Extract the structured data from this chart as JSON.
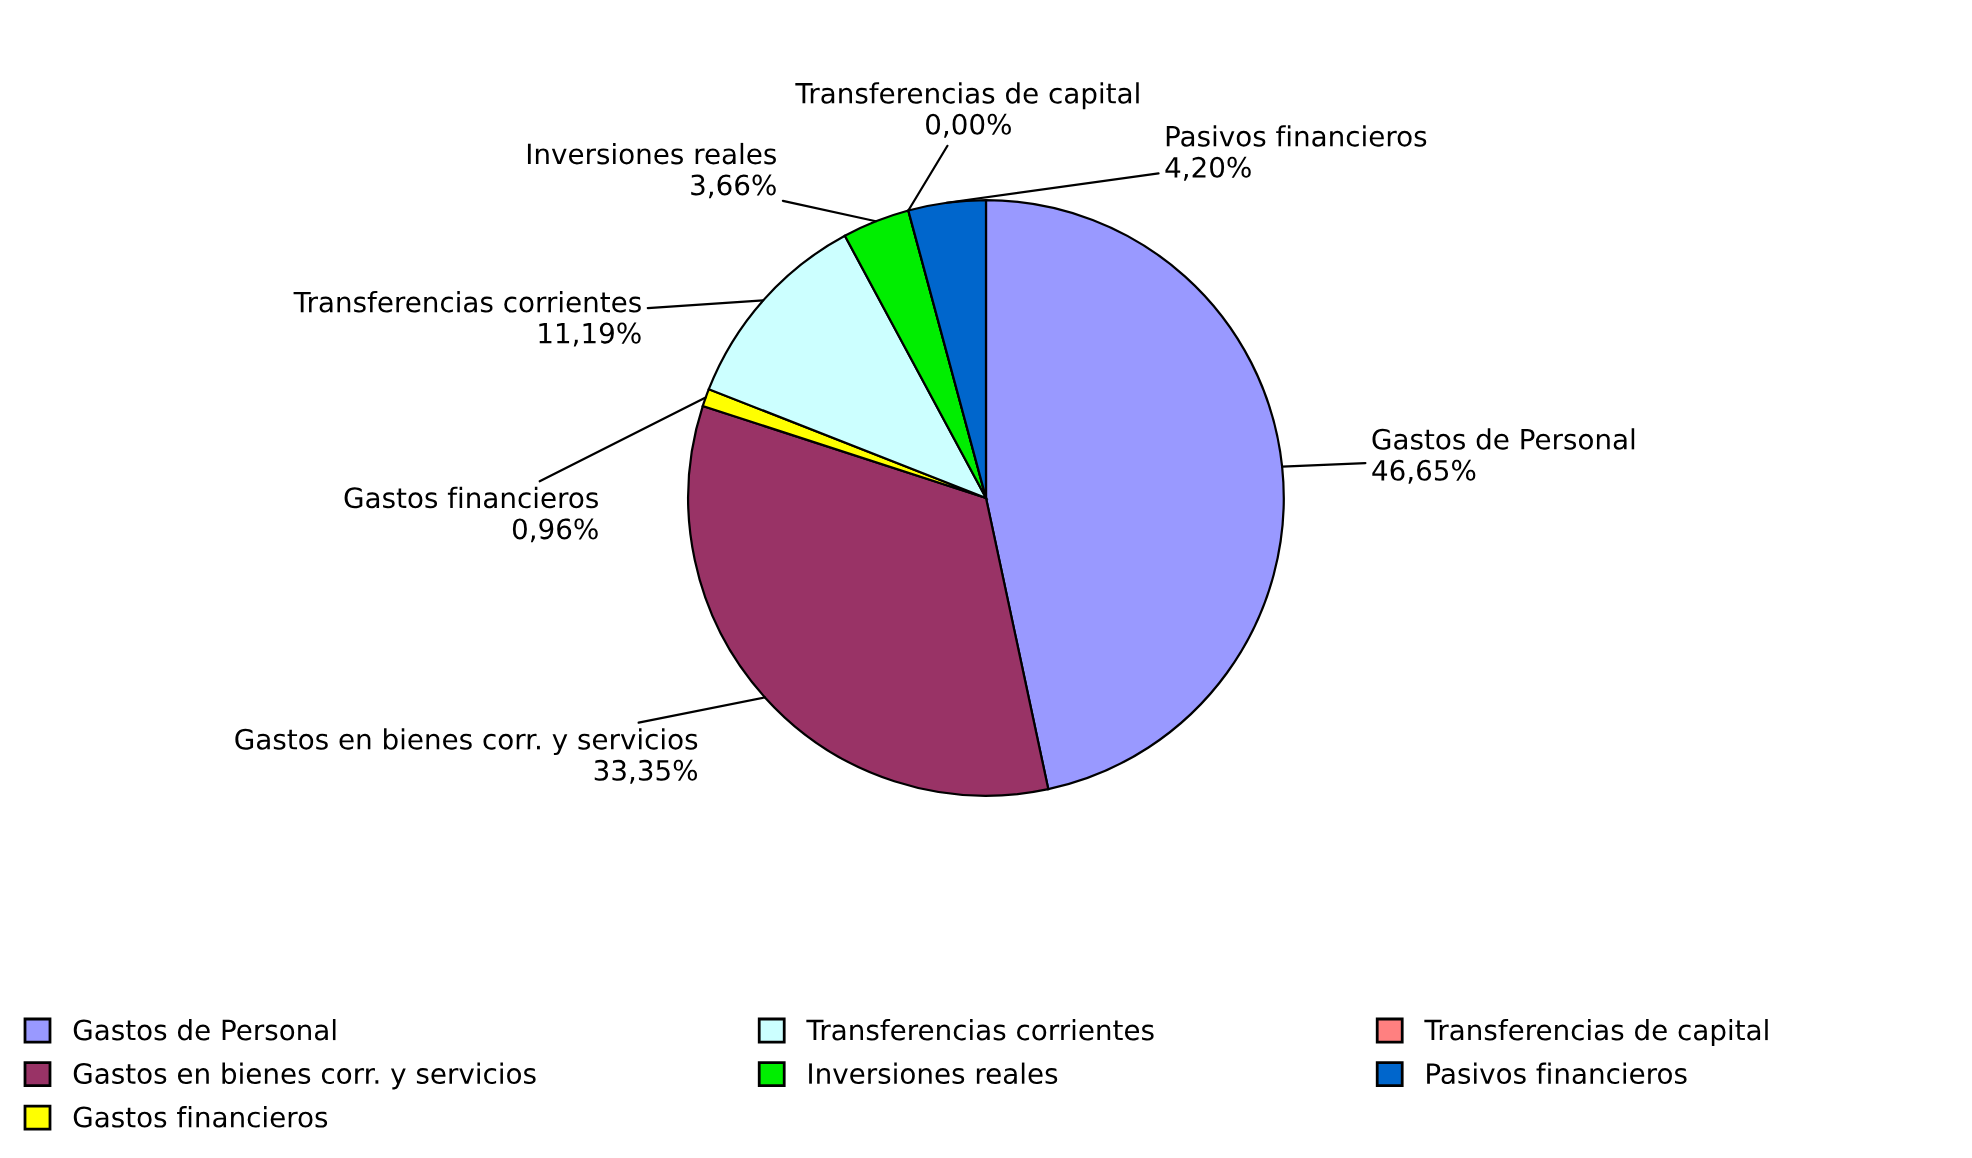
{
  "chart_data": {
    "type": "pie",
    "categories": [
      "Gastos de Personal",
      "Gastos en bienes corr. y servicios",
      "Gastos financieros",
      "Transferencias corrientes",
      "Inversiones reales",
      "Transferencias de capital",
      "Pasivos financieros"
    ],
    "values": [
      46.65,
      33.35,
      0.96,
      11.19,
      3.66,
      0.0,
      4.2
    ],
    "value_labels": [
      "46,65%",
      "33,35%",
      "0,96%",
      "11,19%",
      "3,66%",
      "0,00%",
      "4,20%"
    ],
    "colors": [
      "#9999ff",
      "#993366",
      "#ffff00",
      "#ccffff",
      "#00ee00",
      "#ff8080",
      "#0066cc"
    ],
    "legend": "bottom"
  }
}
